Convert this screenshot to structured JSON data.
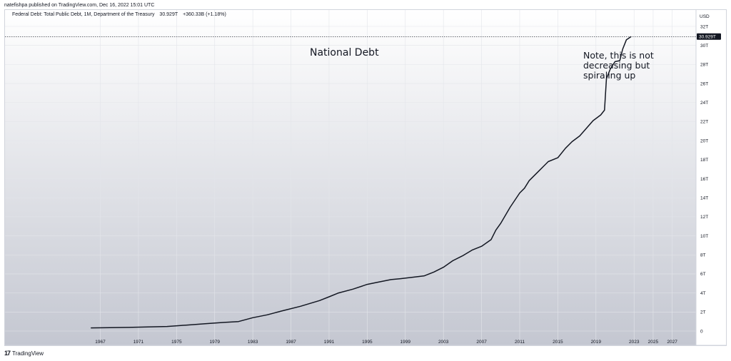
{
  "header": {
    "published_by": "natefishpa published on TradingView.com, Dec 16, 2022 15:01 UTC"
  },
  "legend": {
    "symbol": "Federal Debt: Total Public Debt, 1M, Department of the Treasury",
    "last_value": "30.929T",
    "change": "+360.33B (+1.18%)"
  },
  "annotations": {
    "title": "National Debt",
    "note": "Note, this is not decreasing but spiraling up"
  },
  "footer": {
    "brand": "TradingView"
  },
  "chart_data": {
    "type": "line",
    "title": "",
    "xlabel": "",
    "ylabel": "USD",
    "unit": "USD",
    "xlim": [
      1957,
      2029.5
    ],
    "ylim": [
      0,
      32
    ],
    "x_ticks": [
      "1967",
      "1971",
      "1975",
      "1979",
      "1983",
      "1987",
      "1991",
      "1995",
      "1999",
      "2003",
      "2007",
      "2011",
      "2015",
      "2019",
      "2023",
      "2025",
      "2027"
    ],
    "y_ticks": [
      "0",
      "2T",
      "4T",
      "6T",
      "8T",
      "10T",
      "12T",
      "14T",
      "16T",
      "18T",
      "20T",
      "22T",
      "24T",
      "26T",
      "28T",
      "30T",
      "32T"
    ],
    "last_value_label": "30.929T",
    "last_value": 30.929,
    "grid": true,
    "colors": {
      "line": "#131722",
      "background_top": "#ffffff",
      "background_bottom": "#c4c7d1",
      "grid": "#e4e6ec"
    },
    "series": [
      {
        "x": [
          1966.0,
          1968.0,
          1970.0,
          1972.0,
          1974.0,
          1976.0,
          1978.0,
          1980.0,
          1981.5,
          1983.0,
          1984.5,
          1986.0,
          1988.0,
          1990.0,
          1991.0,
          1992.0,
          1993.5,
          1995.0,
          1996.0,
          1997.5,
          1998.5,
          2000.0,
          2001.0,
          2002.0,
          2003.0,
          2004.0,
          2005.0,
          2006.0,
          2007.0,
          2008.0,
          2008.5,
          2009.0,
          2010.0,
          2011.0,
          2011.5,
          2012.0,
          2013.0,
          2014.0,
          2015.0,
          2015.8,
          2016.5,
          2017.3,
          2018.0,
          2018.7,
          2019.5,
          2019.9,
          2020.1,
          2020.5,
          2021.0,
          2021.5,
          2021.8,
          2022.2,
          2022.7
        ],
        "values": [
          0.33,
          0.36,
          0.38,
          0.43,
          0.48,
          0.62,
          0.77,
          0.91,
          1.0,
          1.4,
          1.7,
          2.1,
          2.6,
          3.2,
          3.6,
          4.0,
          4.4,
          4.9,
          5.1,
          5.4,
          5.5,
          5.67,
          5.8,
          6.2,
          6.7,
          7.4,
          7.9,
          8.5,
          8.9,
          9.6,
          10.6,
          11.3,
          13.0,
          14.5,
          15.0,
          15.8,
          16.8,
          17.8,
          18.2,
          19.2,
          19.9,
          20.5,
          21.3,
          22.1,
          22.7,
          23.2,
          26.5,
          27.5,
          28.3,
          28.4,
          29.6,
          30.6,
          30.93
        ]
      }
    ]
  }
}
